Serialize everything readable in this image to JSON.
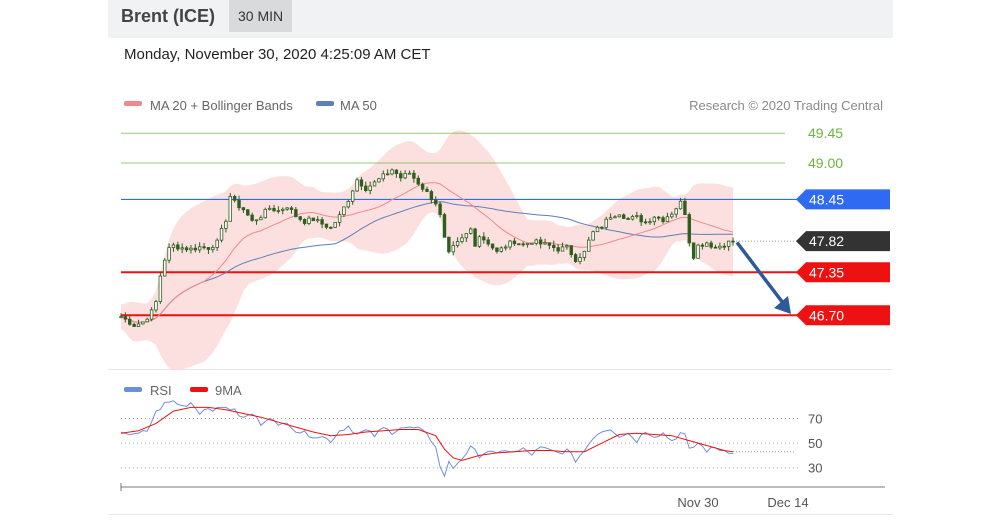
{
  "header": {
    "instrument": "Brent (ICE)",
    "timeframe": "30 MIN",
    "datetime": "Monday, November 30, 2020 4:25:09 AM CET"
  },
  "colors": {
    "ma20": "#f08a8a",
    "band_fill": "#fbd9d9",
    "ma50": "#5d7fba",
    "candle": "#2f5f1f",
    "target_green": "#6db33f",
    "resistance_blue": "#2e6bf2",
    "support_red": "#ee1111",
    "current_black": "#333333",
    "arrow": "#2f5a99",
    "rsi": "#6d8fd8",
    "rsi_ma": "#ee1111"
  },
  "chart_data": [
    {
      "type": "candlestick",
      "legend": [
        "MA 20 + Bollinger Bands",
        "MA 50"
      ],
      "legend_placement": "top-left",
      "credit": "Research © 2020 Trading Central",
      "ylim": [
        46.1,
        49.65
      ],
      "x_tick_labels": [
        "Nov 30",
        "Dec 14"
      ],
      "levels": [
        {
          "value": 49.45,
          "label": "49.45",
          "kind": "target"
        },
        {
          "value": 49.0,
          "label": "49.00",
          "kind": "target"
        },
        {
          "value": 48.45,
          "label": "48.45",
          "kind": "resistance"
        },
        {
          "value": 47.82,
          "label": "47.82",
          "kind": "current"
        },
        {
          "value": 47.35,
          "label": "47.35",
          "kind": "support"
        },
        {
          "value": 46.7,
          "label": "46.70",
          "kind": "support"
        }
      ],
      "forecast_arrow": {
        "from": 47.8,
        "to": 46.78,
        "direction": "down"
      },
      "close_path": [
        [
          0,
          46.68
        ],
        [
          3,
          46.55
        ],
        [
          5,
          46.6
        ],
        [
          7,
          46.75
        ],
        [
          8,
          46.9
        ],
        [
          9,
          47.3
        ],
        [
          10,
          47.55
        ],
        [
          11,
          47.7
        ],
        [
          12,
          47.75
        ],
        [
          14,
          47.72
        ],
        [
          16,
          47.7
        ],
        [
          18,
          47.73
        ],
        [
          20,
          47.72
        ],
        [
          22,
          47.8
        ],
        [
          24,
          48.15
        ],
        [
          25,
          48.5
        ],
        [
          26,
          48.4
        ],
        [
          28,
          48.3
        ],
        [
          30,
          48.12
        ],
        [
          32,
          48.2
        ],
        [
          34,
          48.32
        ],
        [
          36,
          48.28
        ],
        [
          38,
          48.35
        ],
        [
          40,
          48.2
        ],
        [
          42,
          48.12
        ],
        [
          44,
          48.15
        ],
        [
          46,
          48.08
        ],
        [
          48,
          48.02
        ],
        [
          50,
          48.2
        ],
        [
          52,
          48.45
        ],
        [
          54,
          48.75
        ],
        [
          56,
          48.62
        ],
        [
          58,
          48.7
        ],
        [
          60,
          48.8
        ],
        [
          62,
          48.9
        ],
        [
          64,
          48.78
        ],
        [
          66,
          48.85
        ],
        [
          68,
          48.7
        ],
        [
          70,
          48.55
        ],
        [
          72,
          48.4
        ],
        [
          73,
          48.2
        ],
        [
          74,
          47.85
        ],
        [
          75,
          47.62
        ],
        [
          76,
          47.72
        ],
        [
          78,
          47.85
        ],
        [
          80,
          48.0
        ],
        [
          81,
          47.78
        ],
        [
          82,
          47.9
        ],
        [
          84,
          47.8
        ],
        [
          86,
          47.65
        ],
        [
          88,
          47.75
        ],
        [
          90,
          47.82
        ],
        [
          92,
          47.76
        ],
        [
          94,
          47.82
        ],
        [
          96,
          47.78
        ],
        [
          98,
          47.75
        ],
        [
          100,
          47.7
        ],
        [
          102,
          47.72
        ],
        [
          104,
          47.55
        ],
        [
          106,
          47.65
        ],
        [
          107,
          47.82
        ],
        [
          108,
          47.95
        ],
        [
          110,
          48.05
        ],
        [
          112,
          48.2
        ],
        [
          114,
          48.25
        ],
        [
          116,
          48.15
        ],
        [
          118,
          48.18
        ],
        [
          120,
          48.1
        ],
        [
          122,
          48.2
        ],
        [
          124,
          48.15
        ],
        [
          126,
          48.25
        ],
        [
          128,
          48.4
        ],
        [
          129,
          48.25
        ],
        [
          130,
          47.82
        ],
        [
          131,
          47.6
        ],
        [
          132,
          47.75
        ],
        [
          134,
          47.8
        ],
        [
          136,
          47.72
        ],
        [
          138,
          47.78
        ],
        [
          140,
          47.82
        ]
      ]
    },
    {
      "type": "line",
      "legend": [
        "RSI",
        "9MA"
      ],
      "legend_placement": "top-left",
      "ylim": [
        20,
        85
      ],
      "y_ticks": [
        70,
        50,
        30
      ],
      "series": [
        {
          "name": "RSI",
          "values": [
            [
              0,
              60
            ],
            [
              3,
              56
            ],
            [
              6,
              60
            ],
            [
              8,
              75
            ],
            [
              10,
              82
            ],
            [
              12,
              84
            ],
            [
              14,
              80
            ],
            [
              16,
              83
            ],
            [
              18,
              75
            ],
            [
              20,
              79
            ],
            [
              22,
              77
            ],
            [
              24,
              80
            ],
            [
              26,
              76
            ],
            [
              28,
              70
            ],
            [
              30,
              74
            ],
            [
              32,
              66
            ],
            [
              34,
              72
            ],
            [
              36,
              63
            ],
            [
              38,
              68
            ],
            [
              40,
              60
            ],
            [
              42,
              58
            ],
            [
              44,
              56
            ],
            [
              46,
              55
            ],
            [
              48,
              52
            ],
            [
              50,
              60
            ],
            [
              52,
              64
            ],
            [
              54,
              57
            ],
            [
              56,
              60
            ],
            [
              58,
              56
            ],
            [
              60,
              62
            ],
            [
              62,
              59
            ],
            [
              64,
              63
            ],
            [
              66,
              62
            ],
            [
              68,
              62
            ],
            [
              70,
              56
            ],
            [
              72,
              48
            ],
            [
              73,
              30
            ],
            [
              74,
              24
            ],
            [
              75,
              34
            ],
            [
              76,
              30
            ],
            [
              78,
              38
            ],
            [
              80,
              46
            ],
            [
              82,
              40
            ],
            [
              84,
              44
            ],
            [
              86,
              40
            ],
            [
              88,
              45
            ],
            [
              90,
              42
            ],
            [
              92,
              45
            ],
            [
              94,
              41
            ],
            [
              96,
              46
            ],
            [
              98,
              44
            ],
            [
              100,
              42
            ],
            [
              102,
              44
            ],
            [
              104,
              36
            ],
            [
              106,
              44
            ],
            [
              108,
              55
            ],
            [
              110,
              60
            ],
            [
              112,
              62
            ],
            [
              114,
              56
            ],
            [
              116,
              58
            ],
            [
              118,
              52
            ],
            [
              120,
              60
            ],
            [
              122,
              56
            ],
            [
              124,
              58
            ],
            [
              126,
              52
            ],
            [
              128,
              58
            ],
            [
              129,
              56
            ],
            [
              130,
              44
            ],
            [
              132,
              50
            ],
            [
              134,
              44
            ],
            [
              136,
              46
            ],
            [
              138,
              44
            ],
            [
              140,
              43
            ]
          ]
        },
        {
          "name": "9MA",
          "values": [
            [
              0,
              58
            ],
            [
              4,
              60
            ],
            [
              8,
              66
            ],
            [
              12,
              76
            ],
            [
              16,
              79
            ],
            [
              20,
              79
            ],
            [
              24,
              77
            ],
            [
              28,
              74
            ],
            [
              32,
              71
            ],
            [
              36,
              67
            ],
            [
              40,
              63
            ],
            [
              44,
              59
            ],
            [
              48,
              56
            ],
            [
              52,
              57
            ],
            [
              56,
              59
            ],
            [
              60,
              60
            ],
            [
              64,
              61
            ],
            [
              68,
              61
            ],
            [
              72,
              56
            ],
            [
              74,
              45
            ],
            [
              76,
              38
            ],
            [
              78,
              36
            ],
            [
              82,
              40
            ],
            [
              86,
              42
            ],
            [
              90,
              43
            ],
            [
              94,
              44
            ],
            [
              98,
              44
            ],
            [
              102,
              43
            ],
            [
              106,
              43
            ],
            [
              110,
              50
            ],
            [
              114,
              57
            ],
            [
              118,
              58
            ],
            [
              122,
              57
            ],
            [
              126,
              56
            ],
            [
              130,
              52
            ],
            [
              134,
              48
            ],
            [
              138,
              44
            ],
            [
              140,
              43
            ]
          ]
        }
      ]
    }
  ]
}
